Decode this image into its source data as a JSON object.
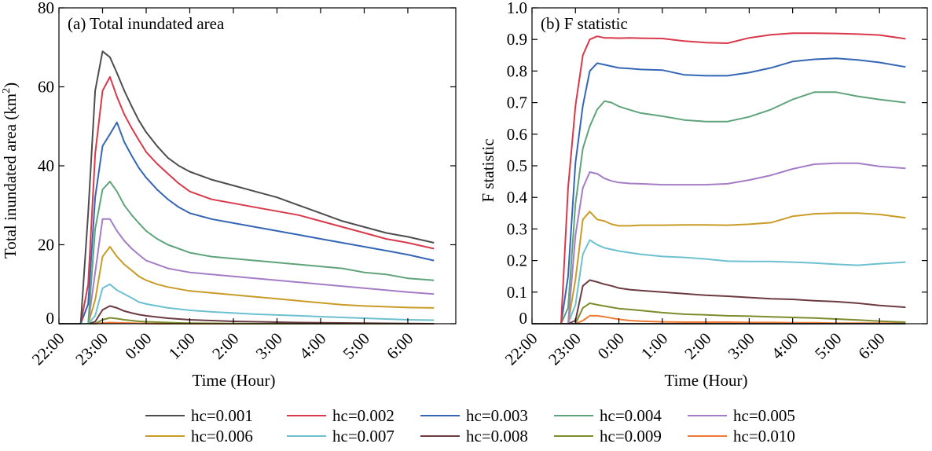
{
  "chart_data": [
    {
      "type": "line",
      "title": "(a) Total inundated area",
      "xlabel": "Time (Hour)",
      "ylabel": "Total inundated area (km²)",
      "ylabel_main": "Total inundated area (km",
      "ylabel_sup": "2",
      "ylabel_end": ")",
      "ylim": [
        0,
        80
      ],
      "yticks": [
        0,
        20,
        40,
        60,
        80
      ],
      "ytick_labels": [
        "0",
        "20",
        "40",
        "60",
        "80"
      ],
      "xlim": [
        -2,
        7.1
      ],
      "xticks": [
        -2,
        -1,
        0,
        1,
        2,
        3,
        4,
        5,
        6
      ],
      "xtick_labels": [
        "22:00",
        "23:00",
        "0:00",
        "1:00",
        "2:00",
        "3:00",
        "4:00",
        "5:00",
        "6:00"
      ],
      "grid": false,
      "x": [
        -2.0,
        -1.5,
        -1.33,
        -1.17,
        -1.0,
        -0.83,
        -0.67,
        -0.5,
        -0.33,
        -0.17,
        0.0,
        0.25,
        0.5,
        0.75,
        1.0,
        1.5,
        2.0,
        2.5,
        3.0,
        3.5,
        4.0,
        4.5,
        5.0,
        5.5,
        6.0,
        6.6
      ],
      "series": [
        {
          "name": "hc=0.001",
          "color": "#4d4d4d",
          "values": [
            0,
            0,
            28,
            59,
            69,
            67.5,
            63.5,
            59,
            55,
            51.5,
            48.5,
            45,
            42,
            40,
            38.5,
            36.5,
            35,
            33.5,
            32,
            30,
            28,
            26,
            24.5,
            23,
            22,
            20.5
          ]
        },
        {
          "name": "hc=0.002",
          "color": "#d9394a",
          "values": [
            0,
            0,
            10,
            43,
            59,
            62.5,
            57.5,
            53,
            49.5,
            46.5,
            43.5,
            40.5,
            38,
            35.5,
            33.5,
            31.5,
            30.5,
            29.5,
            28.5,
            27.5,
            26,
            24.5,
            23,
            21.5,
            20.5,
            19
          ]
        },
        {
          "name": "hc=0.003",
          "color": "#3566b5",
          "values": [
            0,
            0,
            5,
            32,
            45,
            48,
            51,
            46,
            42.5,
            39.5,
            37,
            34,
            31.5,
            29.5,
            28,
            26.5,
            25.5,
            24.5,
            23.5,
            22.5,
            21.5,
            20.5,
            19.5,
            18.5,
            17.5,
            16
          ]
        },
        {
          "name": "hc=0.004",
          "color": "#5fa37a",
          "values": [
            0,
            0,
            0,
            24,
            34,
            36,
            33.5,
            30,
            27.5,
            25.5,
            23.5,
            21.5,
            20,
            19,
            18,
            17,
            16.5,
            16,
            15.5,
            15,
            14.5,
            14,
            13,
            12.5,
            11.5,
            11
          ]
        },
        {
          "name": "hc=0.005",
          "color": "#a47dc6",
          "values": [
            0,
            0,
            0,
            13,
            26.5,
            26.5,
            23.5,
            21,
            19,
            17.5,
            16,
            15,
            14,
            13.5,
            13,
            12.5,
            12,
            11.5,
            11,
            10.5,
            10,
            9.5,
            9,
            8.5,
            8,
            7.5
          ]
        },
        {
          "name": "hc=0.006",
          "color": "#c89c26",
          "values": [
            0,
            0,
            0,
            6,
            17,
            19.5,
            17,
            15,
            13.5,
            12,
            11,
            10,
            9.3,
            8.8,
            8.3,
            7.8,
            7.3,
            6.8,
            6.3,
            5.8,
            5.3,
            4.8,
            4.5,
            4.3,
            4.1,
            4
          ]
        },
        {
          "name": "hc=0.007",
          "color": "#6cc0d0",
          "values": [
            0,
            0,
            0,
            2,
            9,
            10,
            8.5,
            7.5,
            6.5,
            5.5,
            5,
            4.5,
            4,
            3.7,
            3.4,
            3,
            2.7,
            2.4,
            2.2,
            2,
            1.8,
            1.6,
            1.4,
            1.2,
            1,
            0.9
          ]
        },
        {
          "name": "hc=0.008",
          "color": "#6b3b41",
          "values": [
            0,
            0,
            0,
            0.5,
            3.5,
            4.5,
            4,
            3.2,
            2.7,
            2.3,
            2,
            1.7,
            1.4,
            1.2,
            1,
            0.8,
            0.6,
            0.5,
            0.4,
            0.3,
            0.25,
            0.2,
            0.15,
            0.1,
            0.05,
            0
          ]
        },
        {
          "name": "hc=0.009",
          "color": "#7e8c2e",
          "values": [
            0,
            0,
            0,
            0,
            1,
            1.5,
            1.3,
            1,
            0.8,
            0.6,
            0.5,
            0.4,
            0.3,
            0.2,
            0.15,
            0.1,
            0.05,
            0,
            0,
            0,
            0,
            0,
            0,
            0,
            0,
            0
          ]
        },
        {
          "name": "hc=0.010",
          "color": "#ef7a34",
          "values": [
            0,
            0,
            0,
            0,
            0.2,
            0.3,
            0.25,
            0.2,
            0.15,
            0.1,
            0.05,
            0,
            0,
            0,
            0,
            0,
            0,
            0,
            0,
            0,
            0,
            0,
            0,
            0,
            0,
            0
          ]
        }
      ]
    },
    {
      "type": "line",
      "title": "(b) F statistic",
      "xlabel": "Time (Hour)",
      "ylabel": "F statistic",
      "ylim": [
        0,
        1.0
      ],
      "yticks": [
        0,
        0.1,
        0.2,
        0.3,
        0.4,
        0.5,
        0.6,
        0.7,
        0.8,
        0.9,
        1.0
      ],
      "ytick_labels": [
        "0",
        "0.1",
        "0.2",
        "0.3",
        "0.4",
        "0.5",
        "0.6",
        "0.7",
        "0.8",
        "0.9",
        "1.0"
      ],
      "xlim": [
        -2,
        7.1
      ],
      "xticks": [
        -2,
        -1,
        0,
        1,
        2,
        3,
        4,
        5,
        6
      ],
      "xtick_labels": [
        "22:00",
        "23:00",
        "0:00",
        "1:00",
        "2:00",
        "3:00",
        "4:00",
        "5:00",
        "6:00"
      ],
      "grid": false,
      "x": [
        -2.0,
        -1.33,
        -1.17,
        -1.0,
        -0.83,
        -0.67,
        -0.5,
        -0.33,
        -0.17,
        0.0,
        0.25,
        0.5,
        1.0,
        1.5,
        2.0,
        2.5,
        3.0,
        3.5,
        4.0,
        4.5,
        5.0,
        5.5,
        6.0,
        6.6
      ],
      "series": [
        {
          "name": "hc=0.001",
          "color": "#4d4d4d",
          "values": [
            0,
            0,
            0,
            0,
            0,
            0,
            0,
            0,
            0,
            0,
            0,
            0,
            0,
            0,
            0,
            0,
            0,
            0,
            0,
            0,
            0,
            0,
            0,
            0
          ]
        },
        {
          "name": "hc=0.002",
          "color": "#d9394a",
          "values": [
            0,
            0,
            0.43,
            0.69,
            0.85,
            0.9,
            0.91,
            0.905,
            0.905,
            0.904,
            0.905,
            0.904,
            0.903,
            0.895,
            0.89,
            0.888,
            0.905,
            0.915,
            0.92,
            0.92,
            0.919,
            0.917,
            0.914,
            0.902
          ]
        },
        {
          "name": "hc=0.003",
          "color": "#3566b5",
          "values": [
            0,
            0,
            0.15,
            0.51,
            0.69,
            0.8,
            0.825,
            0.82,
            0.815,
            0.81,
            0.808,
            0.805,
            0.803,
            0.788,
            0.785,
            0.785,
            0.795,
            0.81,
            0.83,
            0.837,
            0.84,
            0.835,
            0.827,
            0.813
          ]
        },
        {
          "name": "hc=0.004",
          "color": "#5fa37a",
          "values": [
            0,
            0,
            0.05,
            0.38,
            0.555,
            0.625,
            0.678,
            0.705,
            0.7,
            0.688,
            0.677,
            0.667,
            0.657,
            0.645,
            0.64,
            0.64,
            0.655,
            0.678,
            0.71,
            0.733,
            0.733,
            0.72,
            0.71,
            0.7
          ]
        },
        {
          "name": "hc=0.005",
          "color": "#a47dc6",
          "values": [
            0,
            0,
            0,
            0.28,
            0.43,
            0.48,
            0.475,
            0.46,
            0.452,
            0.447,
            0.444,
            0.443,
            0.44,
            0.44,
            0.44,
            0.443,
            0.455,
            0.47,
            0.49,
            0.505,
            0.508,
            0.508,
            0.498,
            0.492
          ]
        },
        {
          "name": "hc=0.006",
          "color": "#c89c26",
          "values": [
            0,
            0,
            0,
            0.14,
            0.33,
            0.355,
            0.33,
            0.325,
            0.315,
            0.31,
            0.31,
            0.312,
            0.312,
            0.313,
            0.313,
            0.312,
            0.315,
            0.32,
            0.34,
            0.348,
            0.35,
            0.35,
            0.346,
            0.335
          ]
        },
        {
          "name": "hc=0.007",
          "color": "#6cc0d0",
          "values": [
            0,
            0,
            0,
            0.06,
            0.22,
            0.265,
            0.25,
            0.24,
            0.235,
            0.23,
            0.225,
            0.22,
            0.213,
            0.21,
            0.205,
            0.198,
            0.197,
            0.197,
            0.195,
            0.192,
            0.188,
            0.185,
            0.19,
            0.195
          ]
        },
        {
          "name": "hc=0.008",
          "color": "#6b3b41",
          "values": [
            0,
            0,
            0,
            0.01,
            0.12,
            0.138,
            0.132,
            0.125,
            0.12,
            0.113,
            0.108,
            0.105,
            0.1,
            0.095,
            0.09,
            0.087,
            0.083,
            0.079,
            0.077,
            0.073,
            0.07,
            0.065,
            0.058,
            0.052
          ]
        },
        {
          "name": "hc=0.009",
          "color": "#7e8c2e",
          "values": [
            0,
            0,
            0,
            0,
            0.05,
            0.065,
            0.06,
            0.056,
            0.052,
            0.048,
            0.045,
            0.042,
            0.035,
            0.03,
            0.028,
            0.025,
            0.024,
            0.022,
            0.02,
            0.018,
            0.015,
            0.012,
            0.008,
            0.005
          ]
        },
        {
          "name": "hc=0.010",
          "color": "#ef7a34",
          "values": [
            0,
            0,
            0,
            0,
            0.01,
            0.025,
            0.025,
            0.022,
            0.018,
            0.014,
            0.01,
            0.008,
            0.006,
            0.005,
            0.005,
            0.005,
            0.004,
            0.004,
            0.003,
            0.003,
            0.002,
            0.002,
            0.002,
            0.001
          ]
        }
      ]
    }
  ]
}
